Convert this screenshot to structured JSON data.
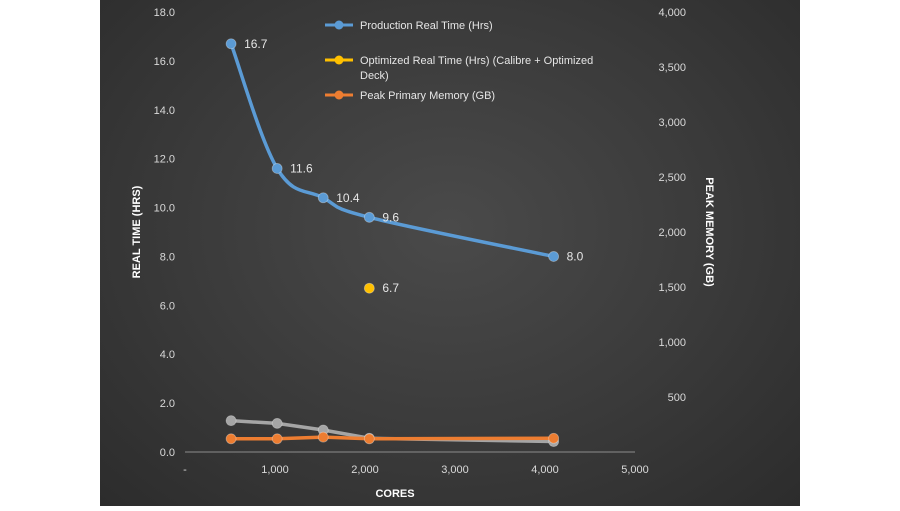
{
  "chart_data": {
    "type": "line",
    "xlabel": "CORES",
    "ylabel": "REAL TIME (HRS)",
    "y2label": "PEAK MEMORY (GB)",
    "xlim": [
      0,
      5000
    ],
    "ylim": [
      0,
      18
    ],
    "y2lim": [
      0,
      4000
    ],
    "x_ticks": [
      0,
      1000,
      2000,
      3000,
      4000,
      5000
    ],
    "x_tick_labels": [
      "-",
      "1,000",
      "2,000",
      "3,000",
      "4,000",
      "5,000"
    ],
    "y_ticks": [
      0,
      2,
      4,
      6,
      8,
      10,
      12,
      14,
      16,
      18
    ],
    "y_tick_labels": [
      "0.0",
      "2.0",
      "4.0",
      "6.0",
      "8.0",
      "10.0",
      "12.0",
      "14.0",
      "16.0",
      "18.0"
    ],
    "y2_ticks": [
      500,
      1000,
      1500,
      2000,
      2500,
      3000,
      3500,
      4000
    ],
    "y2_tick_labels": [
      "500",
      "1,000",
      "1,500",
      "2,000",
      "2,500",
      "3,000",
      "3,500",
      "4,000"
    ],
    "legend_position": "top-center",
    "grid": false,
    "series": [
      {
        "name": "Production Real Time (Hrs)",
        "axis": "left",
        "color": "#5b9bd5",
        "style": "smooth-line-markers",
        "x": [
          512,
          1024,
          1536,
          2048,
          4096
        ],
        "y": [
          16.7,
          11.6,
          10.4,
          9.6,
          8.0
        ],
        "labels": [
          "16.7",
          "11.6",
          "10.4",
          "9.6",
          "8.0"
        ],
        "legend_label": "Production Real Time (Hrs)"
      },
      {
        "name": "Optimized Real Time (Hrs) (Calibre + Optimized Deck)",
        "axis": "left",
        "color": "#ffc000",
        "style": "marker-only",
        "x": [
          2048
        ],
        "y": [
          6.7
        ],
        "labels": [
          "6.7"
        ],
        "legend_label": [
          "Optimized Real Time (Hrs) (Calibre + Optimized",
          "Deck)"
        ]
      },
      {
        "name": "Peak Primary Memory (GB)",
        "axis": "right",
        "color": "#ed7d31",
        "style": "line-markers",
        "x": [
          512,
          1024,
          1536,
          2048,
          4096
        ],
        "y": [
          120,
          120,
          135,
          120,
          125
        ],
        "legend_label": "Peak Primary Memory (GB)"
      },
      {
        "axis": "right",
        "color": "#a5a5a5",
        "style": "line-markers",
        "x": [
          512,
          1024,
          1536,
          2048,
          4096
        ],
        "y": [
          285,
          260,
          200,
          125,
          95
        ]
      }
    ]
  }
}
